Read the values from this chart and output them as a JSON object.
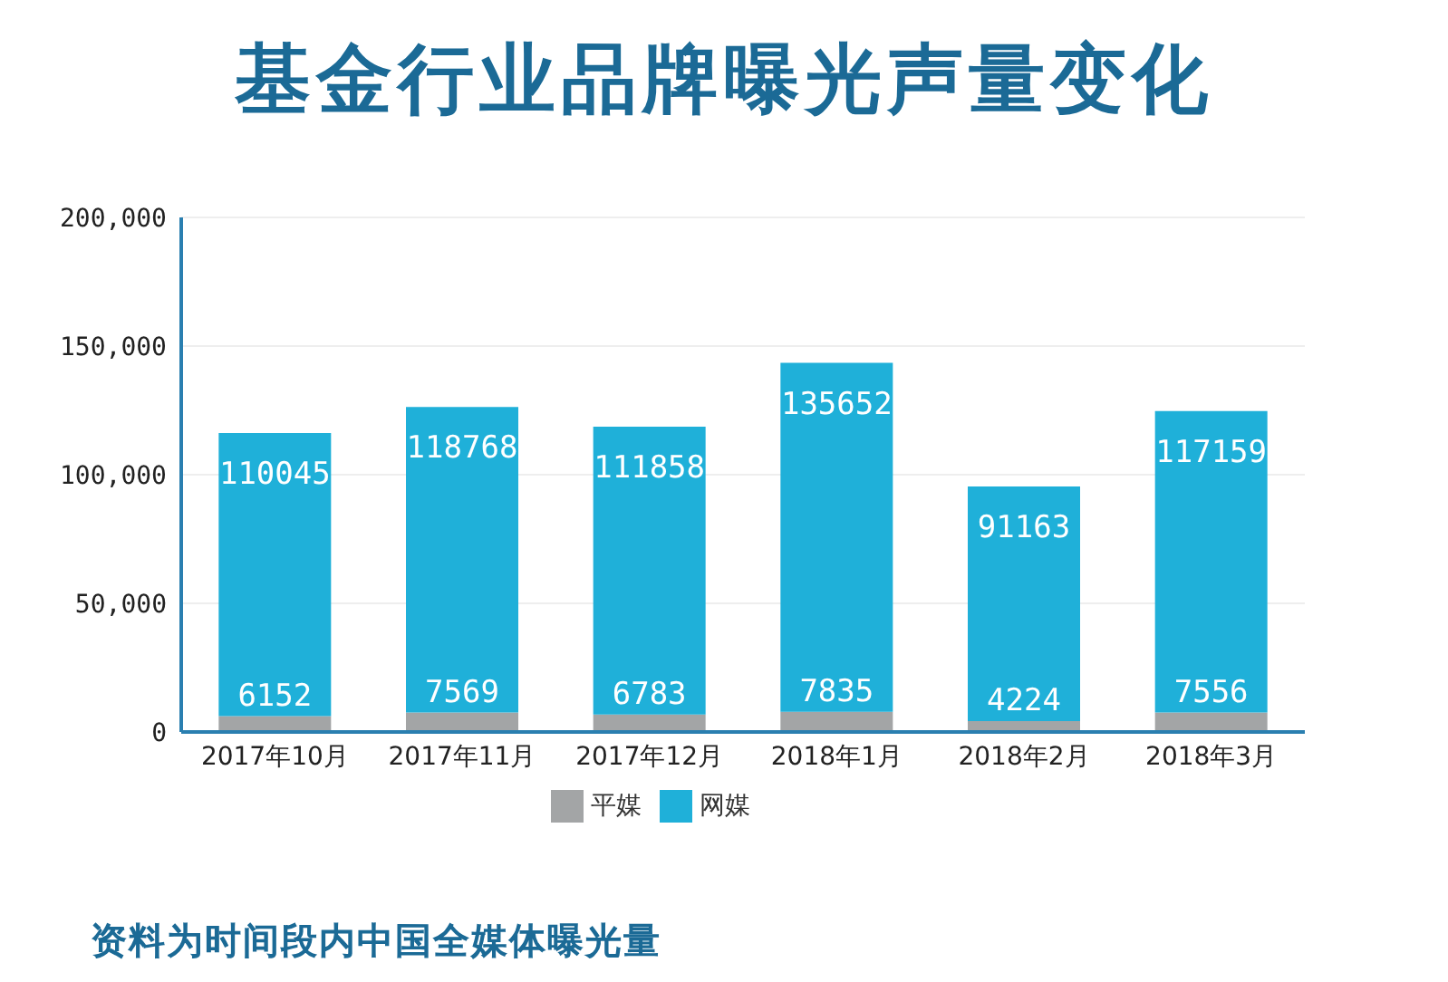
{
  "chart_data": {
    "type": "bar",
    "title": "基金行业品牌曝光声量变化",
    "categories": [
      "2017年10月",
      "2017年11月",
      "2017年12月",
      "2018年1月",
      "2018年2月",
      "2018年3月"
    ],
    "series": [
      {
        "name": "平媒",
        "color": "#a3a5a6",
        "values": [
          6152,
          7569,
          6783,
          7835,
          4224,
          7556
        ]
      },
      {
        "name": "网媒",
        "color": "#1fb0d9",
        "values": [
          110045,
          118768,
          111858,
          135652,
          91163,
          117159
        ]
      }
    ],
    "stacked": true,
    "ylim": [
      0,
      200000
    ],
    "yticks": [
      {
        "value": 0,
        "label": "0"
      },
      {
        "value": 50000,
        "label": "50,000"
      },
      {
        "value": 100000,
        "label": "100,000"
      },
      {
        "value": 150000,
        "label": "150,000"
      },
      {
        "value": 200000,
        "label": "200,000"
      }
    ],
    "grid": "y",
    "legend": "bottom",
    "data_labels": true,
    "annotations": [
      "资料为时间段内中国全媒体曝光量"
    ]
  }
}
